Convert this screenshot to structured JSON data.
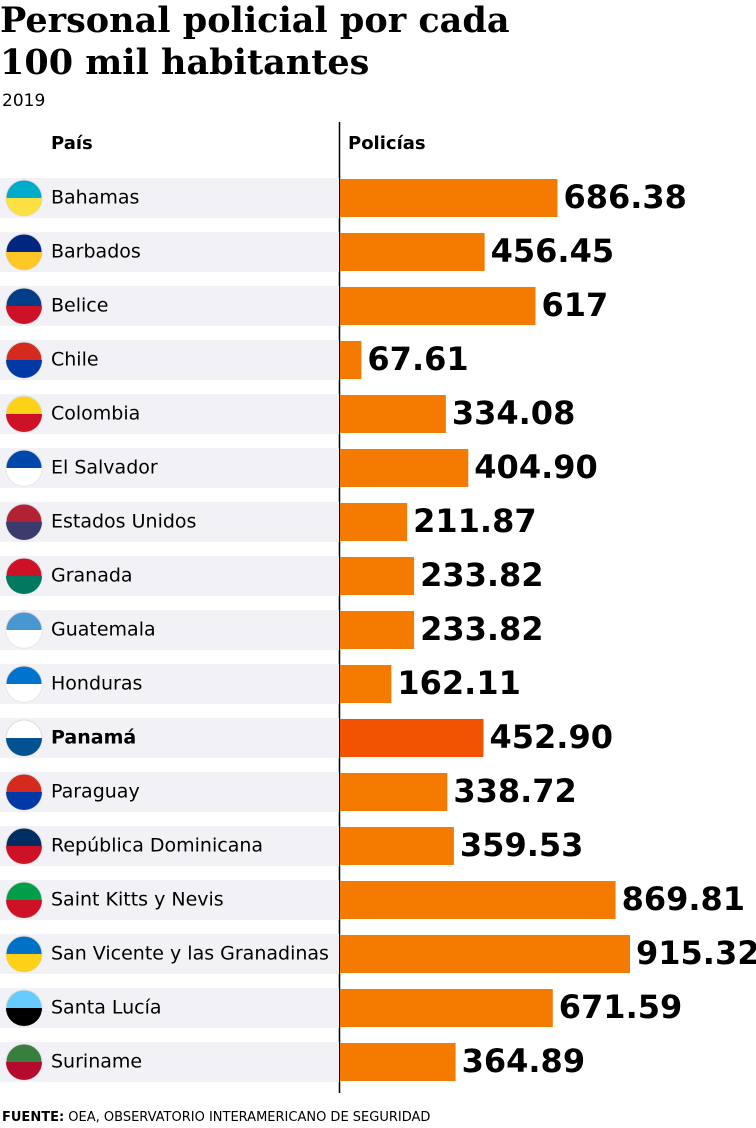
{
  "chart_data": {
    "type": "bar",
    "orientation": "horizontal",
    "title": "Personal policial por cada 100 mil habitantes",
    "subtitle": "2019",
    "category_header": "País",
    "value_header": "Policías",
    "categories": [
      "Bahamas",
      "Barbados",
      "Belice",
      "Chile",
      "Colombia",
      "El Salvador",
      "Estados Unidos",
      "Granada",
      "Guatemala",
      "Honduras",
      "Panamá",
      "Paraguay",
      "República Dominicana",
      "Saint Kitts y Nevis",
      "San Vicente y las Granadinas",
      "Santa Lucía",
      "Suriname"
    ],
    "values": [
      686.38,
      456.45,
      617,
      67.61,
      334.08,
      404.9,
      211.87,
      233.82,
      233.82,
      162.11,
      452.9,
      338.72,
      359.53,
      869.81,
      915.32,
      671.59,
      364.89
    ],
    "value_labels": [
      "686.38",
      "456.45",
      "617",
      "67.61",
      "334.08",
      "404.90",
      "211.87",
      "233.82",
      "233.82",
      "162.11",
      "452.90",
      "338.72",
      "359.53",
      "869.81",
      "915.32",
      "671.59",
      "364.89"
    ],
    "color": "#f57a00",
    "colors": [
      "#f57a00",
      "#f57a00",
      "#f57a00",
      "#f57a00",
      "#f57a00",
      "#f57a00",
      "#f57a00",
      "#f57a00",
      "#f57a00",
      "#f57a00",
      "#f25300",
      "#f57a00",
      "#f57a00",
      "#f57a00",
      "#f57a00",
      "#f57a00",
      "#f57a00"
    ],
    "source_label": "FUENTE:",
    "source": "OEA, OBSERVATORIO INTERAMERICANO DE SEGURIDAD"
  }
}
